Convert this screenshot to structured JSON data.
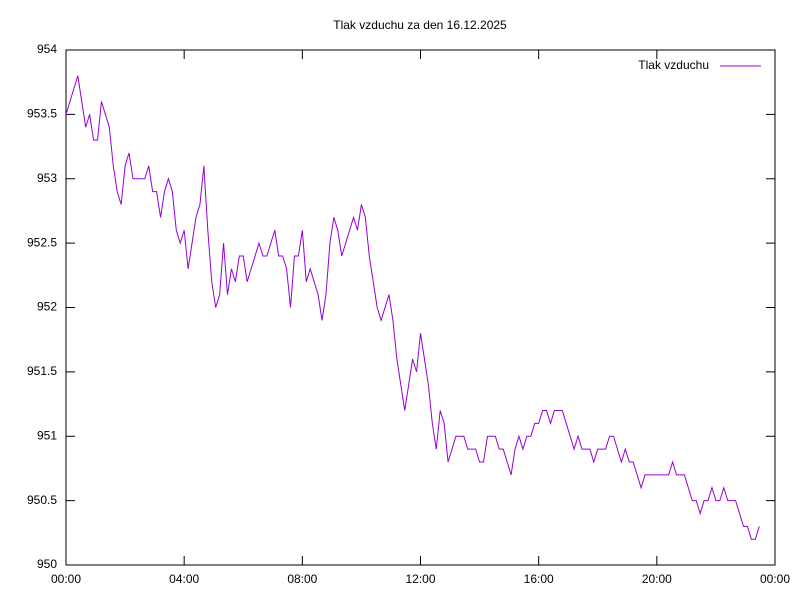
{
  "chart_data": {
    "type": "line",
    "title": "Tlak vzduchu za den 16.12.2025",
    "x": [
      0,
      8,
      16,
      24,
      32,
      40,
      48,
      56,
      64,
      72,
      80,
      88,
      96,
      104,
      112,
      120,
      128,
      136,
      144,
      152,
      160,
      168,
      176,
      184,
      192,
      200,
      208,
      216,
      224,
      232,
      240,
      248,
      256,
      264,
      272,
      280,
      288,
      296,
      304,
      312,
      320,
      328,
      336,
      344,
      352,
      360,
      368,
      376,
      384,
      392,
      400,
      408,
      416,
      424,
      432,
      440,
      448,
      456,
      464,
      472,
      480,
      488,
      496,
      504,
      512,
      520,
      528,
      536,
      544,
      552,
      560,
      568,
      576,
      584,
      592,
      600,
      608,
      616,
      624,
      632,
      640,
      648,
      656,
      664,
      672,
      680,
      688,
      696,
      704,
      712,
      720,
      728,
      736,
      744,
      752,
      760,
      768,
      776,
      784,
      792,
      800,
      808,
      816,
      824,
      832,
      840,
      848,
      856,
      864,
      872,
      880,
      888,
      896,
      904,
      912,
      920,
      928,
      936,
      944,
      952,
      960,
      968,
      976,
      984,
      992,
      1000,
      1008,
      1016,
      1024,
      1032,
      1040,
      1048,
      1056,
      1064,
      1072,
      1080,
      1088,
      1096,
      1104,
      1112,
      1120,
      1128,
      1136,
      1144,
      1152,
      1160,
      1168,
      1176,
      1184,
      1192,
      1200,
      1208,
      1216,
      1224,
      1232,
      1240,
      1248,
      1256,
      1264,
      1272,
      1280,
      1288,
      1296,
      1304,
      1312,
      1320,
      1328,
      1336,
      1344,
      1352,
      1360,
      1368,
      1376,
      1384,
      1392,
      1400,
      1408
    ],
    "series": [
      {
        "name": "Tlak vzduchu",
        "color": "#9400d3",
        "values": [
          953.5,
          953.6,
          953.7,
          953.8,
          953.6,
          953.4,
          953.5,
          953.3,
          953.3,
          953.6,
          953.5,
          953.4,
          953.1,
          952.9,
          952.8,
          953.1,
          953.2,
          953.0,
          953.0,
          953.0,
          953.0,
          953.1,
          952.9,
          952.9,
          952.7,
          952.9,
          953.0,
          952.9,
          952.6,
          952.5,
          952.6,
          952.3,
          952.5,
          952.7,
          952.8,
          953.1,
          952.6,
          952.2,
          952.0,
          952.1,
          952.5,
          952.1,
          952.3,
          952.2,
          952.4,
          952.4,
          952.2,
          952.3,
          952.4,
          952.5,
          952.4,
          952.4,
          952.5,
          952.6,
          952.4,
          952.4,
          952.3,
          952.0,
          952.4,
          952.4,
          952.6,
          952.2,
          952.3,
          952.2,
          952.1,
          951.9,
          952.1,
          952.5,
          952.7,
          952.6,
          952.4,
          952.5,
          952.6,
          952.7,
          952.6,
          952.8,
          952.7,
          952.4,
          952.2,
          952.0,
          951.9,
          952.0,
          952.1,
          951.9,
          951.6,
          951.4,
          951.2,
          951.4,
          951.6,
          951.5,
          951.8,
          951.6,
          951.4,
          951.1,
          950.9,
          951.2,
          951.1,
          950.8,
          950.9,
          951.0,
          951.0,
          951.0,
          950.9,
          950.9,
          950.9,
          950.8,
          950.8,
          951.0,
          951.0,
          951.0,
          950.9,
          950.9,
          950.8,
          950.7,
          950.9,
          951.0,
          950.9,
          951.0,
          951.0,
          951.1,
          951.1,
          951.2,
          951.2,
          951.1,
          951.2,
          951.2,
          951.2,
          951.1,
          951.0,
          950.9,
          951.0,
          950.9,
          950.9,
          950.9,
          950.8,
          950.9,
          950.9,
          950.9,
          951.0,
          951.0,
          950.9,
          950.8,
          950.9,
          950.8,
          950.8,
          950.7,
          950.6,
          950.7,
          950.7,
          950.7,
          950.7,
          950.7,
          950.7,
          950.7,
          950.8,
          950.7,
          950.7,
          950.7,
          950.6,
          950.5,
          950.5,
          950.4,
          950.5,
          950.5,
          950.6,
          950.5,
          950.5,
          950.6,
          950.5,
          950.5,
          950.5,
          950.4,
          950.3,
          950.3,
          950.2,
          950.2,
          950.3
        ]
      }
    ],
    "xlim": [
      0,
      1440
    ],
    "xticks": [
      {
        "value": 0,
        "label": "00:00"
      },
      {
        "value": 240,
        "label": "04:00"
      },
      {
        "value": 480,
        "label": "08:00"
      },
      {
        "value": 720,
        "label": "12:00"
      },
      {
        "value": 960,
        "label": "16:00"
      },
      {
        "value": 1200,
        "label": "20:00"
      },
      {
        "value": 1440,
        "label": "00:00"
      }
    ],
    "ylim": [
      950,
      954
    ],
    "yticks": [
      950,
      950.5,
      951,
      951.5,
      952,
      952.5,
      953,
      953.5,
      954
    ],
    "grid": false,
    "legend": "top-right"
  }
}
